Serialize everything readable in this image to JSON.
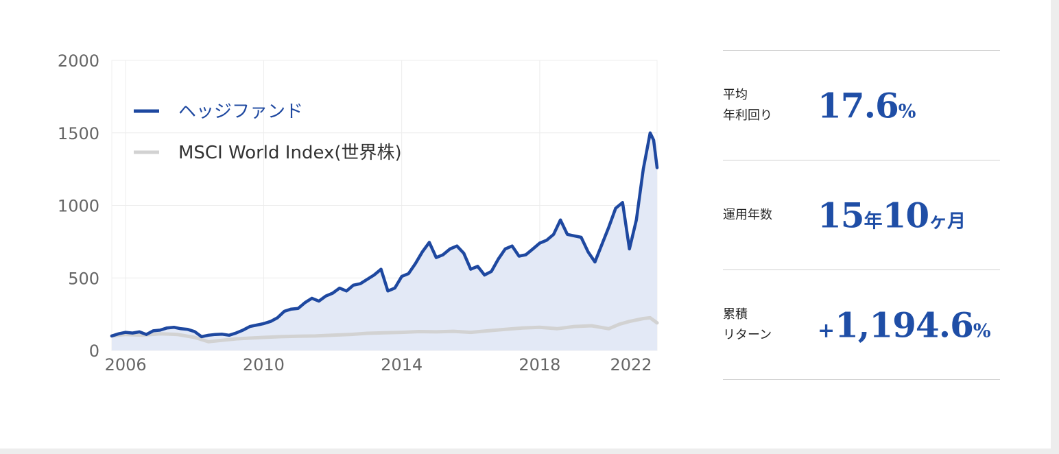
{
  "chart_data": {
    "type": "area",
    "x_ticks": [
      "2006",
      "2010",
      "2014",
      "2018",
      "2022"
    ],
    "y_ticks": [
      "0",
      "500",
      "1000",
      "1500",
      "2000"
    ],
    "ylim": [
      0,
      2000
    ],
    "xlim": [
      2005.6,
      2021.4
    ],
    "grid": true,
    "legend_position": "top-left",
    "series": [
      {
        "name": "ヘッジファンド",
        "color": "#1e48a0",
        "fill": true,
        "points": [
          [
            2005.6,
            100
          ],
          [
            2005.8,
            115
          ],
          [
            2006.0,
            125
          ],
          [
            2006.2,
            120
          ],
          [
            2006.4,
            128
          ],
          [
            2006.6,
            110
          ],
          [
            2006.8,
            135
          ],
          [
            2007.0,
            140
          ],
          [
            2007.2,
            155
          ],
          [
            2007.4,
            160
          ],
          [
            2007.6,
            150
          ],
          [
            2007.8,
            145
          ],
          [
            2008.0,
            130
          ],
          [
            2008.2,
            95
          ],
          [
            2008.4,
            105
          ],
          [
            2008.6,
            110
          ],
          [
            2008.8,
            112
          ],
          [
            2009.0,
            105
          ],
          [
            2009.2,
            120
          ],
          [
            2009.4,
            140
          ],
          [
            2009.6,
            165
          ],
          [
            2009.8,
            175
          ],
          [
            2010.0,
            185
          ],
          [
            2010.2,
            200
          ],
          [
            2010.4,
            225
          ],
          [
            2010.6,
            270
          ],
          [
            2010.8,
            285
          ],
          [
            2011.0,
            290
          ],
          [
            2011.2,
            330
          ],
          [
            2011.4,
            360
          ],
          [
            2011.6,
            340
          ],
          [
            2011.8,
            375
          ],
          [
            2012.0,
            395
          ],
          [
            2012.2,
            430
          ],
          [
            2012.4,
            410
          ],
          [
            2012.6,
            450
          ],
          [
            2012.8,
            460
          ],
          [
            2013.0,
            490
          ],
          [
            2013.2,
            520
          ],
          [
            2013.4,
            560
          ],
          [
            2013.6,
            410
          ],
          [
            2013.8,
            430
          ],
          [
            2014.0,
            510
          ],
          [
            2014.2,
            530
          ],
          [
            2014.4,
            600
          ],
          [
            2014.6,
            680
          ],
          [
            2014.8,
            745
          ],
          [
            2015.0,
            640
          ],
          [
            2015.2,
            660
          ],
          [
            2015.4,
            700
          ],
          [
            2015.6,
            720
          ],
          [
            2015.8,
            670
          ],
          [
            2016.0,
            560
          ],
          [
            2016.2,
            580
          ],
          [
            2016.4,
            520
          ],
          [
            2016.6,
            545
          ],
          [
            2016.8,
            630
          ],
          [
            2017.0,
            700
          ],
          [
            2017.2,
            720
          ],
          [
            2017.4,
            650
          ],
          [
            2017.6,
            660
          ],
          [
            2017.8,
            700
          ],
          [
            2018.0,
            740
          ],
          [
            2018.2,
            760
          ],
          [
            2018.4,
            800
          ],
          [
            2018.6,
            900
          ],
          [
            2018.8,
            800
          ],
          [
            2019.0,
            790
          ],
          [
            2019.2,
            780
          ],
          [
            2019.4,
            680
          ],
          [
            2019.6,
            610
          ],
          [
            2019.8,
            730
          ],
          [
            2020.0,
            850
          ],
          [
            2020.2,
            980
          ],
          [
            2020.4,
            1020
          ],
          [
            2020.6,
            700
          ],
          [
            2020.8,
            900
          ],
          [
            2021.0,
            1250
          ],
          [
            2021.2,
            1500
          ],
          [
            2021.3,
            1450
          ],
          [
            2021.4,
            1260
          ]
        ]
      },
      {
        "name": "MSCI World Index(世界株)",
        "color": "#d2d2d2",
        "fill": false,
        "points": [
          [
            2005.6,
            100
          ],
          [
            2006.0,
            110
          ],
          [
            2006.5,
            105
          ],
          [
            2007.0,
            115
          ],
          [
            2007.5,
            110
          ],
          [
            2008.0,
            90
          ],
          [
            2008.4,
            60
          ],
          [
            2008.8,
            70
          ],
          [
            2009.2,
            80
          ],
          [
            2009.6,
            85
          ],
          [
            2010.0,
            90
          ],
          [
            2010.5,
            95
          ],
          [
            2011.0,
            98
          ],
          [
            2011.5,
            100
          ],
          [
            2012.0,
            105
          ],
          [
            2012.5,
            110
          ],
          [
            2013.0,
            118
          ],
          [
            2013.5,
            122
          ],
          [
            2014.0,
            125
          ],
          [
            2014.5,
            130
          ],
          [
            2015.0,
            128
          ],
          [
            2015.5,
            132
          ],
          [
            2016.0,
            125
          ],
          [
            2016.5,
            135
          ],
          [
            2017.0,
            145
          ],
          [
            2017.5,
            155
          ],
          [
            2018.0,
            160
          ],
          [
            2018.5,
            150
          ],
          [
            2019.0,
            165
          ],
          [
            2019.5,
            170
          ],
          [
            2020.0,
            150
          ],
          [
            2020.3,
            180
          ],
          [
            2020.6,
            200
          ],
          [
            2021.0,
            220
          ],
          [
            2021.2,
            225
          ],
          [
            2021.4,
            190
          ]
        ]
      }
    ]
  },
  "stats": [
    {
      "label": "平均\n年利回り",
      "value": "17.6",
      "unit": "%"
    },
    {
      "label": "運用年数",
      "v1": "15",
      "u1": "年",
      "v2": "10",
      "u2": "ヶ月"
    },
    {
      "label": "累積\nリターン",
      "sign": "+",
      "value": "1,194.6",
      "unit": "%"
    }
  ]
}
